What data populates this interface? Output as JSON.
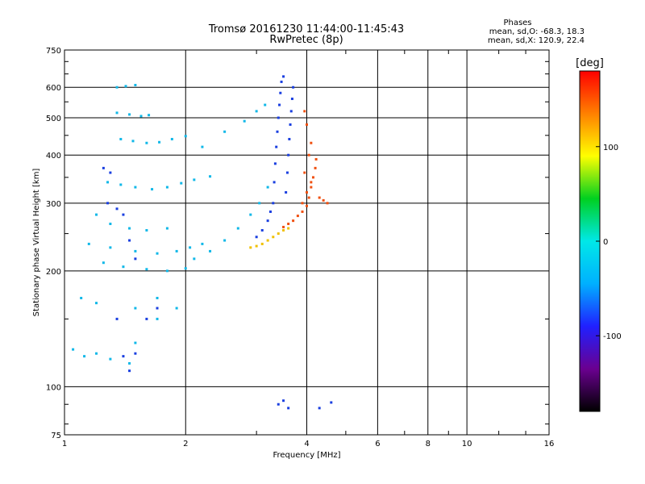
{
  "chart_data": {
    "type": "scatter",
    "title": "Tromsø 20161230 11:44:00-11:45:43",
    "subtitle": "RwPretec (8p)",
    "xlabel": "Frequency [MHz]",
    "ylabel": "Stationary phase Virtual Height [km]",
    "x_scale": "log",
    "y_scale": "log",
    "xlim": [
      1,
      16
    ],
    "ylim": [
      75,
      750
    ],
    "x_ticks": [
      1,
      2,
      4,
      6,
      8,
      10,
      16
    ],
    "y_ticks": [
      75,
      100,
      200,
      300,
      400,
      500,
      600,
      750
    ],
    "grid": true,
    "phase_info": {
      "heading": "Phases",
      "o_line": "mean, sd,O: -68.3, 18.3",
      "x_line": "mean, sd,X: 120.9, 22.4"
    },
    "colorbar": {
      "label": "[deg]",
      "range": [
        -180,
        180
      ],
      "ticks": [
        100,
        0,
        -100
      ],
      "colors": [
        "#000000",
        "#6a0090",
        "#2020ff",
        "#00b0ff",
        "#00e8e8",
        "#00d020",
        "#ffff00",
        "#ff8000",
        "#ff0000"
      ]
    },
    "series": [
      {
        "points": [
          [
            1.35,
            600
          ],
          [
            1.42,
            604
          ],
          [
            1.5,
            608
          ],
          [
            1.35,
            515
          ],
          [
            1.45,
            510
          ],
          [
            1.55,
            505
          ],
          [
            1.62,
            508
          ],
          [
            1.38,
            440
          ],
          [
            1.48,
            435
          ],
          [
            1.6,
            430
          ],
          [
            1.72,
            432
          ],
          [
            1.85,
            440
          ],
          [
            2.0,
            448
          ],
          [
            1.28,
            340
          ],
          [
            1.38,
            335
          ],
          [
            1.5,
            330
          ],
          [
            1.65,
            326
          ],
          [
            1.8,
            330
          ],
          [
            1.95,
            338
          ],
          [
            2.1,
            345
          ],
          [
            2.3,
            352
          ],
          [
            1.2,
            280
          ],
          [
            1.3,
            265
          ],
          [
            1.45,
            258
          ],
          [
            1.6,
            255
          ],
          [
            1.8,
            258
          ],
          [
            1.15,
            235
          ],
          [
            1.3,
            230
          ],
          [
            1.5,
            225
          ],
          [
            1.7,
            222
          ],
          [
            1.9,
            225
          ],
          [
            2.05,
            230
          ],
          [
            2.2,
            235
          ],
          [
            1.25,
            210
          ],
          [
            1.4,
            205
          ],
          [
            1.6,
            202
          ],
          [
            1.8,
            200
          ],
          [
            2.0,
            203
          ],
          [
            2.1,
            215
          ],
          [
            2.3,
            225
          ],
          [
            2.5,
            240
          ],
          [
            2.7,
            258
          ],
          [
            2.9,
            280
          ],
          [
            3.05,
            300
          ],
          [
            3.2,
            330
          ],
          [
            2.2,
            420
          ],
          [
            2.5,
            460
          ],
          [
            2.8,
            490
          ],
          [
            3.0,
            520
          ],
          [
            3.15,
            540
          ],
          [
            1.05,
            125
          ],
          [
            1.12,
            120
          ],
          [
            1.2,
            122
          ],
          [
            1.3,
            118
          ],
          [
            1.45,
            115
          ],
          [
            1.5,
            130
          ],
          [
            1.7,
            150
          ],
          [
            1.9,
            160
          ],
          [
            1.1,
            170
          ],
          [
            1.2,
            165
          ],
          [
            1.5,
            160
          ],
          [
            1.7,
            170
          ]
        ],
        "color": "#10b8e8"
      },
      {
        "points": [
          [
            3.3,
            300
          ],
          [
            3.32,
            340
          ],
          [
            3.34,
            380
          ],
          [
            3.36,
            420
          ],
          [
            3.38,
            460
          ],
          [
            3.4,
            500
          ],
          [
            3.42,
            540
          ],
          [
            3.44,
            580
          ],
          [
            3.46,
            620
          ],
          [
            3.5,
            640
          ],
          [
            3.55,
            320
          ],
          [
            3.58,
            360
          ],
          [
            3.6,
            400
          ],
          [
            3.62,
            440
          ],
          [
            3.64,
            480
          ],
          [
            3.66,
            520
          ],
          [
            3.68,
            560
          ],
          [
            3.7,
            600
          ],
          [
            3.2,
            270
          ],
          [
            3.1,
            255
          ],
          [
            3.0,
            245
          ],
          [
            3.25,
            285
          ],
          [
            1.25,
            370
          ],
          [
            1.3,
            360
          ],
          [
            1.28,
            300
          ],
          [
            1.35,
            290
          ],
          [
            1.4,
            280
          ],
          [
            1.45,
            240
          ],
          [
            1.5,
            215
          ],
          [
            1.4,
            120
          ],
          [
            1.5,
            122
          ],
          [
            1.45,
            110
          ],
          [
            1.6,
            150
          ],
          [
            1.7,
            160
          ],
          [
            1.35,
            150
          ],
          [
            3.4,
            90
          ],
          [
            3.5,
            92
          ],
          [
            3.6,
            88
          ],
          [
            4.3,
            88
          ],
          [
            4.6,
            91
          ]
        ],
        "color": "#1a3fe0"
      },
      {
        "points": [
          [
            3.5,
            260
          ],
          [
            3.6,
            265
          ],
          [
            3.7,
            270
          ],
          [
            3.8,
            278
          ],
          [
            3.9,
            285
          ],
          [
            4.0,
            295
          ],
          [
            4.05,
            310
          ],
          [
            4.1,
            330
          ],
          [
            4.15,
            350
          ],
          [
            4.2,
            370
          ],
          [
            4.22,
            390
          ],
          [
            3.9,
            300
          ],
          [
            4.0,
            320
          ],
          [
            4.1,
            340
          ],
          [
            3.95,
            360
          ],
          [
            4.05,
            400
          ],
          [
            4.1,
            430
          ],
          [
            4.0,
            480
          ],
          [
            3.95,
            520
          ],
          [
            4.3,
            310
          ],
          [
            4.4,
            305
          ],
          [
            4.5,
            300
          ]
        ],
        "color": "#f05010"
      },
      {
        "points": [
          [
            2.9,
            230
          ],
          [
            3.0,
            232
          ],
          [
            3.1,
            235
          ],
          [
            3.2,
            240
          ],
          [
            3.3,
            245
          ],
          [
            3.4,
            250
          ],
          [
            3.5,
            255
          ],
          [
            3.6,
            258
          ]
        ],
        "color": "#f0c000"
      }
    ]
  }
}
